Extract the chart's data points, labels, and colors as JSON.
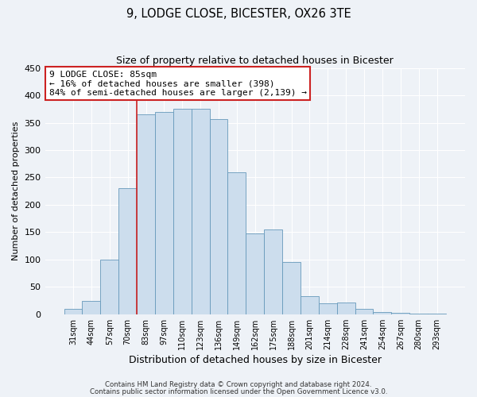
{
  "title": "9, LODGE CLOSE, BICESTER, OX26 3TE",
  "subtitle": "Size of property relative to detached houses in Bicester",
  "xlabel": "Distribution of detached houses by size in Bicester",
  "ylabel": "Number of detached properties",
  "bar_labels": [
    "31sqm",
    "44sqm",
    "57sqm",
    "70sqm",
    "83sqm",
    "97sqm",
    "110sqm",
    "123sqm",
    "136sqm",
    "149sqm",
    "162sqm",
    "175sqm",
    "188sqm",
    "201sqm",
    "214sqm",
    "228sqm",
    "241sqm",
    "254sqm",
    "267sqm",
    "280sqm",
    "293sqm"
  ],
  "bar_values": [
    10,
    25,
    100,
    230,
    365,
    370,
    375,
    375,
    357,
    260,
    147,
    155,
    95,
    33,
    20,
    21,
    10,
    4,
    2,
    1,
    1
  ],
  "bar_color": "#ccdded",
  "bar_edge_color": "#6699bb",
  "vline_x_index": 4,
  "vline_color": "#cc2222",
  "ylim": [
    0,
    450
  ],
  "yticks": [
    0,
    50,
    100,
    150,
    200,
    250,
    300,
    350,
    400,
    450
  ],
  "annotation_line1": "9 LODGE CLOSE: 85sqm",
  "annotation_line2": "← 16% of detached houses are smaller (398)",
  "annotation_line3": "84% of semi-detached houses are larger (2,139) →",
  "footer1": "Contains HM Land Registry data © Crown copyright and database right 2024.",
  "footer2": "Contains public sector information licensed under the Open Government Licence v3.0.",
  "background_color": "#eef2f7",
  "grid_color": "#ffffff",
  "title_fontsize": 10.5,
  "subtitle_fontsize": 9,
  "ylabel_fontsize": 8,
  "xlabel_fontsize": 9
}
